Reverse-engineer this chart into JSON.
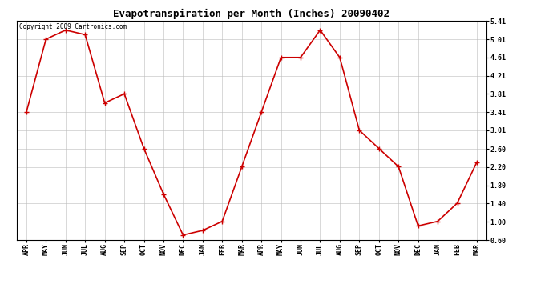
{
  "title": "Evapotranspiration per Month (Inches) 20090402",
  "copyright_text": "Copyright 2009 Cartronics.com",
  "months": [
    "APR",
    "MAY",
    "JUN",
    "JUL",
    "AUG",
    "SEP",
    "OCT",
    "NOV",
    "DEC",
    "JAN",
    "FEB",
    "MAR",
    "APR",
    "MAY",
    "JUN",
    "JUL",
    "AUG",
    "SEP",
    "OCT",
    "NOV",
    "DEC",
    "JAN",
    "FEB",
    "MAR"
  ],
  "values": [
    3.41,
    5.01,
    5.21,
    5.11,
    3.61,
    3.81,
    2.61,
    1.61,
    0.71,
    0.81,
    1.01,
    2.21,
    3.41,
    4.61,
    4.61,
    5.21,
    4.61,
    3.01,
    2.61,
    2.21,
    0.91,
    1.01,
    1.41,
    2.31
  ],
  "line_color": "#cc0000",
  "marker": "+",
  "marker_size": 4,
  "line_width": 1.2,
  "ylim": [
    0.6,
    5.41
  ],
  "yticks": [
    0.6,
    1.0,
    1.4,
    1.8,
    2.2,
    2.6,
    3.01,
    3.41,
    3.81,
    4.21,
    4.61,
    5.01,
    5.41
  ],
  "background_color": "#ffffff",
  "grid_color": "#bbbbbb",
  "title_fontsize": 9,
  "tick_fontsize": 6,
  "copyright_fontsize": 5.5
}
